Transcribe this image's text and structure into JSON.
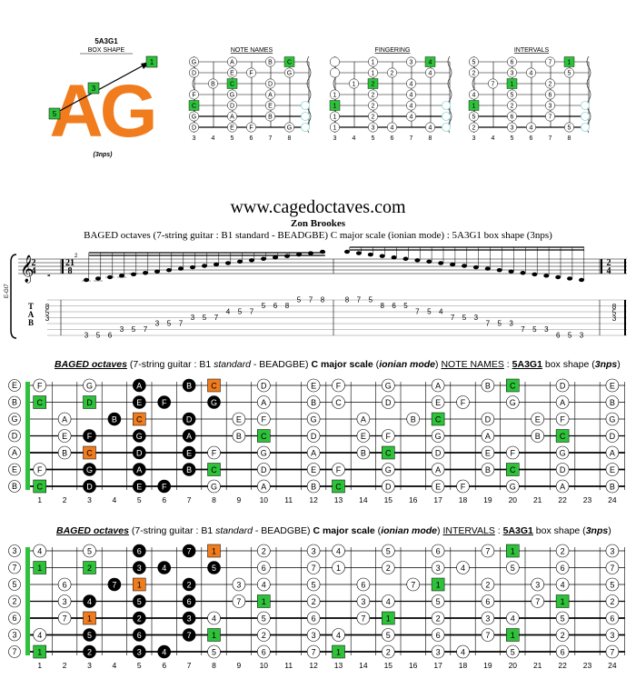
{
  "shape": {
    "code": "5A3G1",
    "label": "BOX SHAPE",
    "big": "AG",
    "nps": "(3nps)",
    "badges": [
      "1",
      "3",
      "5"
    ]
  },
  "mini": {
    "titles": [
      "NOTE NAMES",
      "FINGERING",
      "INTERVALS"
    ],
    "fret_numbers": [
      "3",
      "4",
      "5",
      "6",
      "7",
      "8"
    ],
    "rows": [
      {
        "n": "G",
        "f": "",
        "i": "5"
      },
      {
        "n": "D",
        "f": "",
        "i": "2"
      },
      {
        "n": "B",
        "f": "1",
        "i": "7"
      },
      {
        "n": "F",
        "f": "1",
        "i": "4"
      },
      {
        "n": "C",
        "f": "1",
        "i": "1"
      },
      {
        "n": "G",
        "f": "1",
        "i": "5"
      },
      {
        "n": "D",
        "f": "1",
        "i": "2"
      }
    ],
    "grid_names": [
      [
        "G",
        "",
        "A",
        "",
        "B",
        "C"
      ],
      [
        "D",
        "",
        "E",
        "F",
        "",
        "G"
      ],
      [
        "",
        "B",
        "C",
        "",
        "D",
        ""
      ],
      [
        "F",
        "",
        "G",
        "",
        "A",
        ""
      ],
      [
        "C",
        "",
        "D",
        "",
        "E",
        ""
      ],
      [
        "G",
        "",
        "A",
        "",
        "B",
        ""
      ],
      [
        "D",
        "",
        "E",
        "F",
        "",
        "G"
      ]
    ],
    "grid_fingers": [
      [
        "",
        "",
        "1",
        "",
        "3",
        "4"
      ],
      [
        "",
        "",
        "1",
        "2",
        "",
        "4"
      ],
      [
        "",
        "1",
        "2",
        "",
        "4",
        ""
      ],
      [
        "1",
        "",
        "2",
        "",
        "4",
        ""
      ],
      [
        "1",
        "",
        "2",
        "",
        "4",
        ""
      ],
      [
        "1",
        "",
        "2",
        "",
        "4",
        ""
      ],
      [
        "1",
        "",
        "3",
        "4",
        "",
        "4"
      ]
    ],
    "grid_intervals": [
      [
        "5",
        "",
        "6",
        "",
        "7",
        "1"
      ],
      [
        "2",
        "",
        "3",
        "4",
        "",
        "5"
      ],
      [
        "",
        "7",
        "1",
        "",
        "2",
        ""
      ],
      [
        "4",
        "",
        "5",
        "",
        "6",
        ""
      ],
      [
        "1",
        "",
        "2",
        "",
        "3",
        ""
      ],
      [
        "5",
        "",
        "6",
        "",
        "7",
        ""
      ],
      [
        "2",
        "",
        "3",
        "4",
        "",
        "5"
      ]
    ]
  },
  "site": "www.cagedoctaves.com",
  "author": "Zon Brookes",
  "subtitle": "BAGED octaves (7-string guitar : B1 standard - BEADGBE) C major scale (ionian mode) : 5A3G1 box shape (3nps)",
  "staff": {
    "clef_label": "E-Gt7",
    "time1": [
      "2",
      "4"
    ],
    "time2": [
      "21",
      "8"
    ],
    "time3": [
      "2",
      "4"
    ],
    "tab_letters": [
      "T",
      "A",
      "B"
    ],
    "start_tab": [
      "8",
      "5",
      "3"
    ],
    "end_tab": [
      "8",
      "5",
      "3"
    ],
    "asc": [
      "3",
      "5",
      "6",
      "3",
      "5",
      "7",
      "3",
      "5",
      "7",
      "3",
      "5",
      "7",
      "4",
      "5",
      "7",
      "5",
      "6",
      "8",
      "5",
      "7",
      "8"
    ],
    "desc": [
      "8",
      "7",
      "5",
      "8",
      "6",
      "5",
      "7",
      "5",
      "4",
      "7",
      "5",
      "3",
      "7",
      "5",
      "3",
      "7",
      "5",
      "3",
      "6",
      "5",
      "3"
    ],
    "measure_num": "2"
  },
  "fb1": {
    "title_parts": [
      "BAGED octaves",
      " (7-string guitar : B1 ",
      "standard",
      " - BEADGBE) ",
      "C major scale",
      " (",
      "ionian mode",
      ") ",
      "NOTE NAMES",
      " : ",
      "5A3G1",
      " box shape (",
      "3nps",
      ")"
    ],
    "open": [
      "E",
      "B",
      "G",
      "D",
      "A",
      "E",
      "B"
    ],
    "rows": [
      [
        "F",
        "",
        "G",
        "",
        "A",
        "",
        "B",
        "C",
        "",
        "D",
        "",
        "E",
        "F",
        "",
        "G",
        "",
        "A",
        "",
        "B",
        "C",
        "",
        "D",
        "",
        "E"
      ],
      [
        "C",
        "",
        "D",
        "",
        "E",
        "F",
        "",
        "G",
        "",
        "A",
        "",
        "B",
        "C",
        "",
        "D",
        "",
        "E",
        "F",
        "",
        "G",
        "",
        "A",
        "",
        "B"
      ],
      [
        "",
        "A",
        "",
        "B",
        "C",
        "",
        "D",
        "",
        "E",
        "F",
        "",
        "G",
        "",
        "A",
        "",
        "B",
        "C",
        "",
        "D",
        "",
        "E",
        "F",
        "",
        "G"
      ],
      [
        "",
        "E",
        "F",
        "",
        "G",
        "",
        "A",
        "",
        "B",
        "C",
        "",
        "D",
        "",
        "E",
        "F",
        "",
        "G",
        "",
        "A",
        "",
        "B",
        "C",
        "",
        "D"
      ],
      [
        "",
        "B",
        "C",
        "",
        "D",
        "",
        "E",
        "F",
        "",
        "G",
        "",
        "A",
        "",
        "B",
        "C",
        "",
        "D",
        "",
        "E",
        "F",
        "",
        "G",
        "",
        "A"
      ],
      [
        "F",
        "",
        "G",
        "",
        "A",
        "",
        "B",
        "C",
        "",
        "D",
        "",
        "E",
        "F",
        "",
        "G",
        "",
        "A",
        "",
        "B",
        "C",
        "",
        "D",
        "",
        "E"
      ],
      [
        "C",
        "",
        "D",
        "",
        "E",
        "F",
        "",
        "G",
        "",
        "A",
        "",
        "B",
        "C",
        "",
        "D",
        "",
        "E",
        "F",
        "",
        "G",
        "",
        "A",
        "",
        "B"
      ]
    ],
    "fret_numbers": [
      "1",
      "2",
      "3",
      "4",
      "5",
      "6",
      "7",
      "8",
      "9",
      "10",
      "11",
      "12",
      "13",
      "14",
      "15",
      "16",
      "17",
      "18",
      "19",
      "20",
      "21",
      "22",
      "23",
      "24"
    ],
    "colors": {
      "orange": "#f07c1e",
      "green": "#2ec13a",
      "black": "#000000"
    }
  },
  "fb2": {
    "title_parts": [
      "BAGED octaves",
      " (7-string guitar : B1 ",
      "standard",
      " - BEADGBE) ",
      "C major scale",
      " (",
      "ionian mode",
      ") ",
      "INTERVALS",
      " : ",
      "5A3G1",
      " box shape (",
      "3nps",
      ")"
    ],
    "open": [
      "3",
      "7",
      "5",
      "2",
      "6",
      "3",
      "7"
    ],
    "rows": [
      [
        "4",
        "",
        "5",
        "",
        "6",
        "",
        "7",
        "1",
        "",
        "2",
        "",
        "3",
        "4",
        "",
        "5",
        "",
        "6",
        "",
        "7",
        "1",
        "",
        "2",
        "",
        "3"
      ],
      [
        "1",
        "",
        "2",
        "",
        "3",
        "4",
        "",
        "5",
        "",
        "6",
        "",
        "7",
        "1",
        "",
        "2",
        "",
        "3",
        "4",
        "",
        "5",
        "",
        "6",
        "",
        "7"
      ],
      [
        "",
        "6",
        "",
        "7",
        "1",
        "",
        "2",
        "",
        "3",
        "4",
        "",
        "5",
        "",
        "6",
        "",
        "7",
        "1",
        "",
        "2",
        "",
        "3",
        "4",
        "",
        "5"
      ],
      [
        "",
        "3",
        "4",
        "",
        "5",
        "",
        "6",
        "",
        "7",
        "1",
        "",
        "2",
        "",
        "3",
        "4",
        "",
        "5",
        "",
        "6",
        "",
        "7",
        "1",
        "",
        "2"
      ],
      [
        "",
        "7",
        "1",
        "",
        "2",
        "",
        "3",
        "4",
        "",
        "5",
        "",
        "6",
        "",
        "7",
        "1",
        "",
        "2",
        "",
        "3",
        "4",
        "",
        "5",
        "",
        "6"
      ],
      [
        "4",
        "",
        "5",
        "",
        "6",
        "",
        "7",
        "1",
        "",
        "2",
        "",
        "3",
        "4",
        "",
        "5",
        "",
        "6",
        "",
        "7",
        "1",
        "",
        "2",
        "",
        "3"
      ],
      [
        "1",
        "",
        "2",
        "",
        "3",
        "4",
        "",
        "5",
        "",
        "6",
        "",
        "7",
        "1",
        "",
        "2",
        "",
        "3",
        "4",
        "",
        "5",
        "",
        "6",
        "",
        "7"
      ]
    ],
    "fret_numbers": [
      "1",
      "2",
      "3",
      "4",
      "5",
      "6",
      "7",
      "8",
      "9",
      "10",
      "11",
      "12",
      "13",
      "14",
      "15",
      "16",
      "17",
      "18",
      "19",
      "20",
      "21",
      "22",
      "23",
      "24"
    ]
  }
}
